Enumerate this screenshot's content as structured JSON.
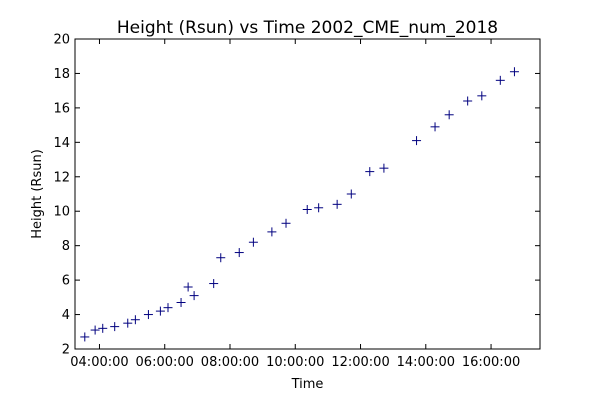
{
  "chart_data": {
    "type": "scatter",
    "title": "Height (Rsun) vs Time 2002_CME_num_2018",
    "xlabel": "Time",
    "ylabel": "Height (Rsun)",
    "xlim": [
      "03:15:00",
      "17:30:00"
    ],
    "ylim": [
      2,
      20
    ],
    "x_ticks": [
      "04:00:00",
      "06:00:00",
      "08:00:00",
      "10:00:00",
      "12:00:00",
      "14:00:00",
      "16:00:00"
    ],
    "y_ticks": [
      2,
      4,
      6,
      8,
      10,
      12,
      14,
      16,
      18,
      20
    ],
    "grid": false,
    "marker": "+",
    "marker_color": "#00007f",
    "series": [
      {
        "points": [
          {
            "x": "03:33:00",
            "y": 2.7
          },
          {
            "x": "03:52:00",
            "y": 3.1
          },
          {
            "x": "04:06:00",
            "y": 3.2
          },
          {
            "x": "04:28:00",
            "y": 3.3
          },
          {
            "x": "04:52:00",
            "y": 3.5
          },
          {
            "x": "05:06:00",
            "y": 3.7
          },
          {
            "x": "05:30:00",
            "y": 4.0
          },
          {
            "x": "05:52:00",
            "y": 4.2
          },
          {
            "x": "06:06:00",
            "y": 4.4
          },
          {
            "x": "06:30:00",
            "y": 4.7
          },
          {
            "x": "06:43:00",
            "y": 5.6
          },
          {
            "x": "06:54:00",
            "y": 5.1
          },
          {
            "x": "07:30:00",
            "y": 5.8
          },
          {
            "x": "07:43:00",
            "y": 7.3
          },
          {
            "x": "08:17:00",
            "y": 7.6
          },
          {
            "x": "08:43:00",
            "y": 8.2
          },
          {
            "x": "09:17:00",
            "y": 8.8
          },
          {
            "x": "09:43:00",
            "y": 9.3
          },
          {
            "x": "10:22:00",
            "y": 10.1
          },
          {
            "x": "10:43:00",
            "y": 10.2
          },
          {
            "x": "11:17:00",
            "y": 10.4
          },
          {
            "x": "11:43:00",
            "y": 11.0
          },
          {
            "x": "12:17:00",
            "y": 12.3
          },
          {
            "x": "12:43:00",
            "y": 12.5
          },
          {
            "x": "13:43:00",
            "y": 14.1
          },
          {
            "x": "14:17:00",
            "y": 14.9
          },
          {
            "x": "14:43:00",
            "y": 15.6
          },
          {
            "x": "15:17:00",
            "y": 16.4
          },
          {
            "x": "15:43:00",
            "y": 16.7
          },
          {
            "x": "16:17:00",
            "y": 17.6
          },
          {
            "x": "16:43:00",
            "y": 18.1
          }
        ]
      }
    ]
  }
}
